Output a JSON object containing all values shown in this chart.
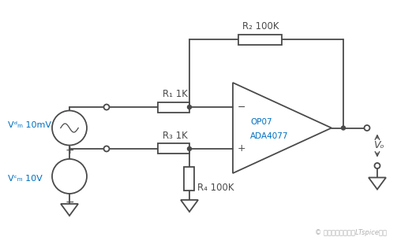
{
  "bg_color": "#ffffff",
  "line_color": "#4a4a4a",
  "text_color_blue": "#0070c0",
  "text_color_black": "#000000",
  "watermark": "© 放大器参数解析与LTspice仿真",
  "R1_label": "R₁ 1K",
  "R2_label": "R₂ 100K",
  "R3_label": "R₃ 1K",
  "R4_label": "R₄ 100K",
  "Vdm_label": "Vᵈₘ 10mV",
  "Vcm_label": "Vᶜₘ 10V",
  "opamp_label1": "OP07",
  "opamp_label2": "ADA4077",
  "Vo_label": "Vₒ",
  "figsize": [
    5.03,
    3.15
  ],
  "dpi": 100
}
